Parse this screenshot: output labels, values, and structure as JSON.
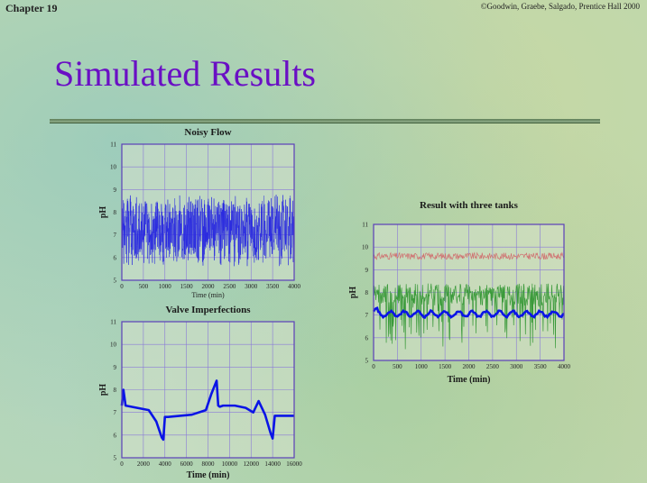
{
  "header": {
    "chapter": "Chapter 19",
    "copyright": "©Goodwin, Graebe, Salgado, Prentice Hall 2000"
  },
  "slide": {
    "title": "Simulated Results"
  },
  "chart_data": [
    {
      "id": "noisy",
      "type": "line",
      "title": "Noisy Flow",
      "xlabel": "Time (min)",
      "ylabel": "pH",
      "xlim": [
        0,
        4000
      ],
      "ylim": [
        5,
        11
      ],
      "xticks": [
        0,
        500,
        1000,
        1500,
        2000,
        2500,
        3000,
        3500,
        4000
      ],
      "yticks": [
        5,
        6,
        7,
        8,
        9,
        10,
        11
      ],
      "grid": true,
      "series": [
        {
          "color": "#2a2ae0",
          "noise_band": [
            5.6,
            8.8
          ],
          "x_range": [
            0,
            4000
          ]
        }
      ]
    },
    {
      "id": "valve",
      "type": "line",
      "title": "Valve Imperfections",
      "xlabel": "Time (min)",
      "ylabel": "pH",
      "xlim": [
        0,
        16000
      ],
      "ylim": [
        5,
        11
      ],
      "xticks": [
        0,
        2000,
        4000,
        6000,
        8000,
        10000,
        12000,
        14000,
        16000
      ],
      "yticks": [
        5,
        6,
        7,
        8,
        9,
        10,
        11
      ],
      "grid": true,
      "series": [
        {
          "color": "#0a14e6",
          "x": [
            0,
            150,
            350,
            2500,
            3200,
            3700,
            3850,
            4000,
            4300,
            6500,
            7800,
            8300,
            8800,
            8950,
            9100,
            9400,
            10500,
            11500,
            12200,
            12700,
            13300,
            13800,
            14000,
            14200,
            15000,
            16000
          ],
          "y": [
            7.3,
            8.0,
            7.3,
            7.1,
            6.6,
            5.9,
            5.8,
            6.8,
            6.8,
            6.9,
            7.1,
            7.8,
            8.4,
            7.3,
            7.25,
            7.3,
            7.3,
            7.2,
            7.0,
            7.5,
            6.9,
            6.1,
            5.85,
            6.85,
            6.85,
            6.85
          ]
        }
      ]
    },
    {
      "id": "three",
      "type": "line",
      "title": "Result with three tanks",
      "xlabel": "Time (min)",
      "ylabel": "pH",
      "xlim": [
        0,
        4000
      ],
      "ylim": [
        5,
        11
      ],
      "xticks": [
        0,
        500,
        1000,
        1500,
        2000,
        2500,
        3000,
        3500,
        4000
      ],
      "yticks": [
        5,
        6,
        7,
        8,
        9,
        10,
        11
      ],
      "grid": true,
      "series": [
        {
          "color": "#d07070",
          "mean": 9.6,
          "amplitude": 0.2
        },
        {
          "color": "#3a9a3a",
          "mean": 7.9,
          "amplitude": 1.4
        },
        {
          "color": "#0a14e6",
          "mean": 7.05,
          "amplitude": 0.12
        }
      ]
    }
  ]
}
